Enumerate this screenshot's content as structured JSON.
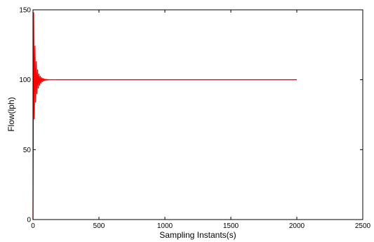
{
  "chart_data": {
    "type": "line",
    "title": "",
    "xlabel": "Sampling Instants(s)",
    "ylabel": "Flow(lph)",
    "xlim": [
      0,
      2500
    ],
    "ylim": [
      0,
      150
    ],
    "xticks": [
      0,
      500,
      1000,
      1500,
      2000,
      2500
    ],
    "yticks": [
      0,
      50,
      100,
      150
    ],
    "grid": false,
    "legend": "none",
    "series": [
      {
        "color": "#ff0000",
        "x": [
          0,
          5,
          10,
          15,
          20,
          25,
          30,
          35,
          40,
          45,
          50,
          55,
          60,
          65,
          70,
          75,
          80,
          85,
          90,
          95,
          100,
          105,
          110,
          115,
          120,
          125,
          130,
          140,
          150,
          160,
          170,
          180,
          200,
          2000
        ],
        "y": [
          0,
          148,
          72,
          124,
          84,
          113,
          90,
          107,
          94,
          104,
          96,
          102.5,
          97.5,
          101.5,
          98.5,
          101,
          99,
          100.6,
          99.4,
          100.4,
          99.6,
          100.25,
          99.75,
          100.15,
          99.85,
          100.1,
          99.9,
          100.05,
          99.95,
          100.03,
          99.97,
          100,
          100,
          100
        ]
      }
    ]
  }
}
